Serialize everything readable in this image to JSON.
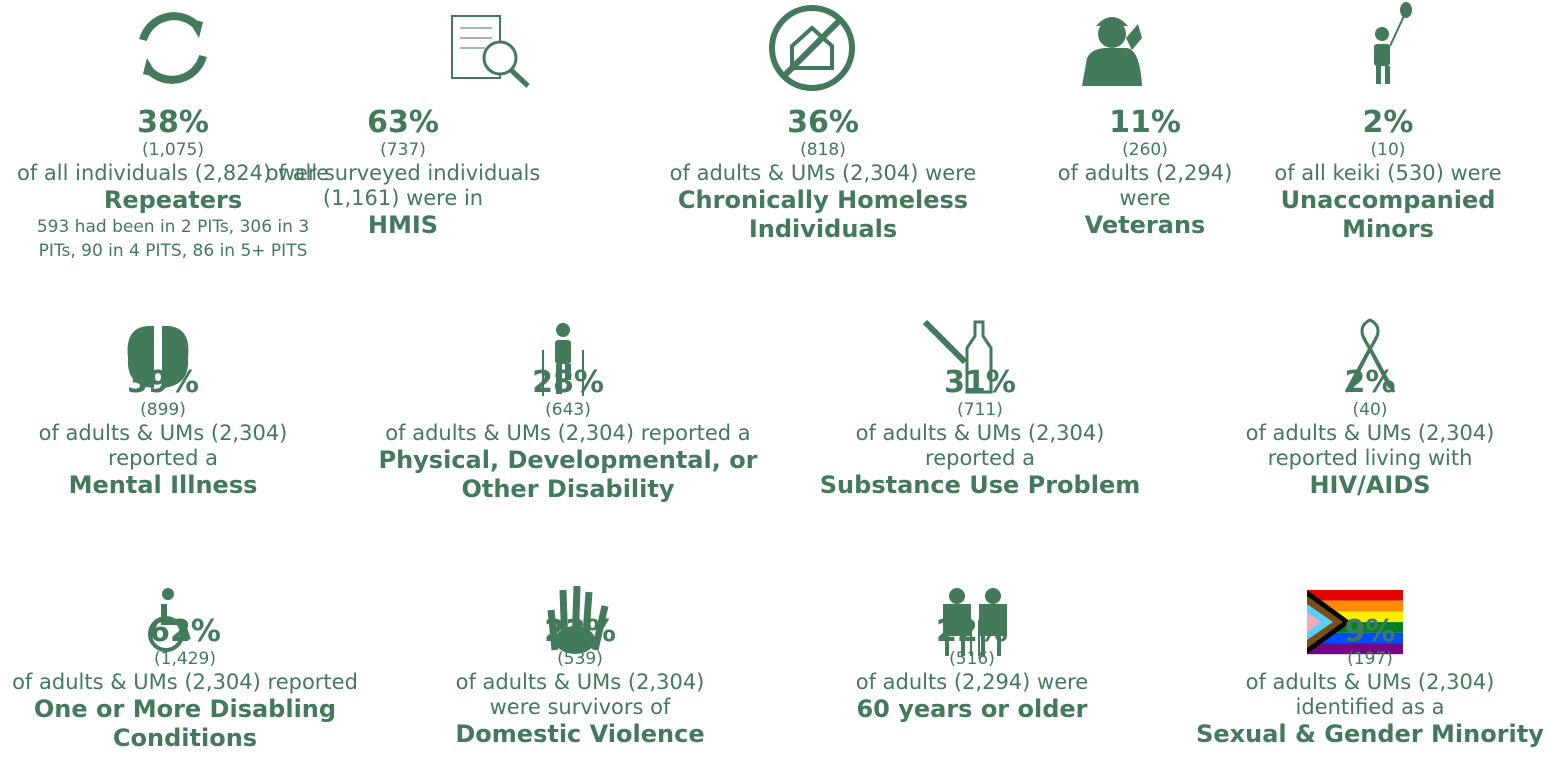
{
  "items": [
    {
      "pct": "38%",
      "count": "(1,075)",
      "text": [
        "of all individuals (2,824) were"
      ],
      "label": [
        "Repeaters"
      ],
      "note": [
        "593 had been in 2 PITs, 306 in 3",
        "PITs, 90 in 4 PITS, 86 in 5+ PITS"
      ]
    },
    {
      "pct": "63%",
      "count": "(737)",
      "text": [
        "of all surveyed individuals",
        "(1,161) were in"
      ],
      "label": [
        "HMIS"
      ]
    },
    {
      "pct": "36%",
      "count": "(818)",
      "text": [
        "of adults & UMs (2,304) were"
      ],
      "label": [
        "Chronically Homeless",
        "Individuals"
      ]
    },
    {
      "pct": "11%",
      "count": "(260)",
      "text": [
        "of adults (2,294)",
        "were"
      ],
      "label": [
        "Veterans"
      ]
    },
    {
      "pct": "2%",
      "count": "(10)",
      "text": [
        "of all keiki (530) were"
      ],
      "label": [
        "Unaccompanied",
        "Minors"
      ]
    },
    {
      "pct": "39%",
      "count": "(899)",
      "text": [
        "of adults & UMs (2,304)",
        "reported a"
      ],
      "label": [
        "Mental Illness"
      ]
    },
    {
      "pct": "28%",
      "count": "(643)",
      "text": [
        "of adults & UMs (2,304) reported a"
      ],
      "label": [
        "Physical, Developmental, or",
        "Other Disability"
      ]
    },
    {
      "pct": "31%",
      "count": "(711)",
      "text": [
        "of adults & UMs (2,304)",
        "reported a"
      ],
      "label": [
        "Substance Use Problem"
      ]
    },
    {
      "pct": "2%",
      "count": "(40)",
      "text": [
        "of adults & UMs (2,304)",
        "reported living with"
      ],
      "label": [
        "HIV/AIDS"
      ]
    },
    {
      "pct": "62%",
      "count": "(1,429)",
      "text": [
        "of adults & UMs (2,304) reported"
      ],
      "label": [
        "One or More Disabling",
        "Conditions"
      ]
    },
    {
      "pct": "23%",
      "count": "(539)",
      "text": [
        "of adults & UMs (2,304)",
        "were survivors of"
      ],
      "label": [
        "Domestic Violence"
      ]
    },
    {
      "pct": "22%",
      "count": "(516)",
      "text": [
        "of adults (2,294) were"
      ],
      "label": [
        "60 years or older"
      ]
    },
    {
      "pct": "9%",
      "count": "(197)",
      "text": [
        "of adults & UMs (2,304)",
        "identified as a"
      ],
      "label": [
        "Sexual & Gender Minority"
      ]
    }
  ]
}
